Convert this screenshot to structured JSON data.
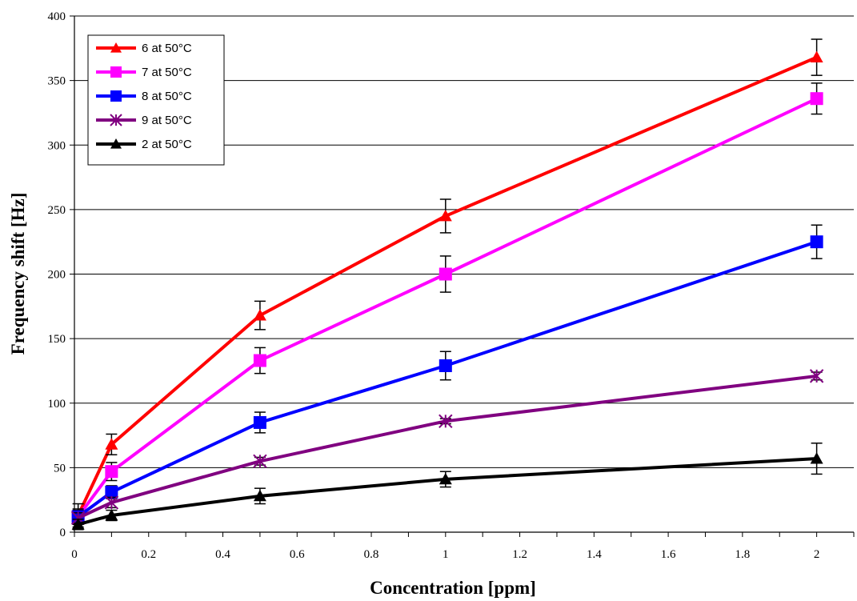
{
  "chart_data": {
    "type": "line",
    "title": "",
    "xlabel": "Concentration [ppm]",
    "ylabel": "Frequency shift [Hz]",
    "xlim": [
      0,
      2.1
    ],
    "ylim": [
      0,
      400
    ],
    "x_ticks": [
      "0",
      "0.2",
      "0.4",
      "0.6",
      "0.8",
      "1",
      "1.2",
      "1.4",
      "1.6",
      "1.8",
      "2"
    ],
    "x_tick_values": [
      0,
      0.2,
      0.4,
      0.6,
      0.8,
      1,
      1.2,
      1.4,
      1.6,
      1.8,
      2
    ],
    "y_ticks": [
      "0",
      "50",
      "100",
      "150",
      "200",
      "250",
      "300",
      "350",
      "400"
    ],
    "y_tick_values": [
      0,
      50,
      100,
      150,
      200,
      250,
      300,
      350,
      400
    ],
    "grid": "horizontal",
    "legend_position": "top-left",
    "series": [
      {
        "name": "6 at 50°C",
        "color": "#ff0000",
        "marker": "triangle",
        "x": [
          0.01,
          0.1,
          0.5,
          1,
          2
        ],
        "y": [
          13,
          68,
          168,
          245,
          368
        ],
        "err": [
          9,
          8,
          11,
          13,
          14
        ]
      },
      {
        "name": "7 at 50°C",
        "color": "#ff00ff",
        "marker": "square",
        "x": [
          0.01,
          0.1,
          0.5,
          1,
          2
        ],
        "y": [
          12,
          47,
          133,
          200,
          336
        ],
        "err": [
          6,
          7,
          10,
          14,
          12
        ]
      },
      {
        "name": "8 at 50°C",
        "color": "#0000ff",
        "marker": "square",
        "x": [
          0.01,
          0.1,
          0.5,
          1,
          2
        ],
        "y": [
          12,
          31,
          85,
          129,
          225
        ],
        "err": [
          5,
          5,
          8,
          11,
          13
        ]
      },
      {
        "name": "9 at 50°C",
        "color": "#800080",
        "marker": "asterisk",
        "x": [
          0.01,
          0.1,
          0.5,
          1,
          2
        ],
        "y": [
          11,
          23,
          55,
          86,
          121
        ],
        "err": [
          4,
          4,
          3,
          2,
          3
        ]
      },
      {
        "name": "2 at 50°C",
        "color": "#000000",
        "marker": "triangle",
        "x": [
          0.01,
          0.1,
          0.5,
          1,
          2
        ],
        "y": [
          6,
          13,
          28,
          41,
          57
        ],
        "err": [
          4,
          4,
          6,
          6,
          12
        ]
      }
    ]
  }
}
